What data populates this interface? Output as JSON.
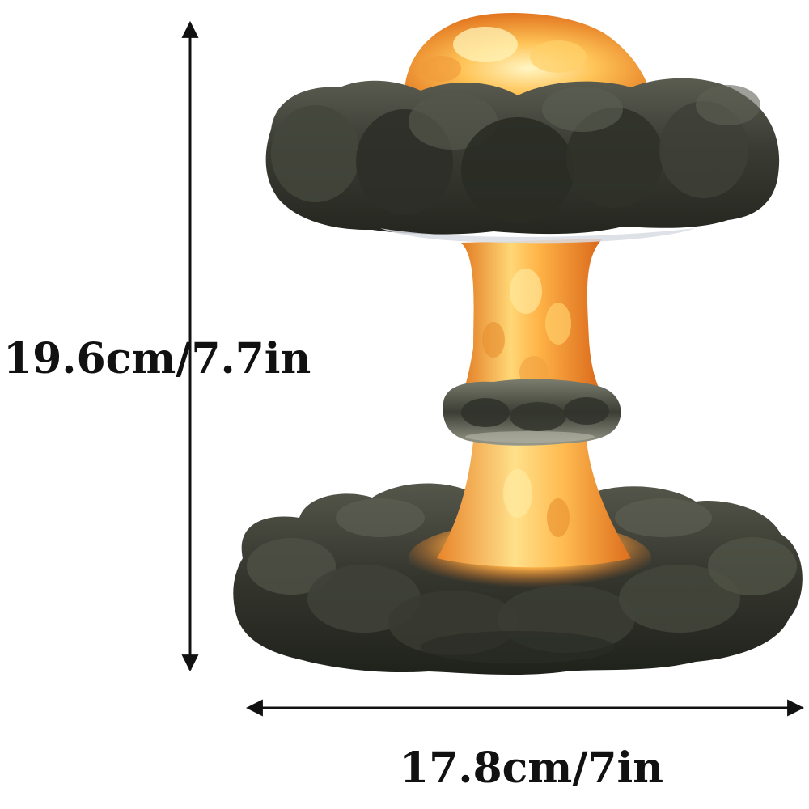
{
  "dimensions": {
    "height_label": "19.6cm/7.7in",
    "width_label": "17.8cm/7in"
  },
  "product": {
    "colors": {
      "smoke_dark": "#2b2d27",
      "smoke_mid": "#4a4c43",
      "smoke_light": "#6d6f63",
      "fire_core": "#fff1a8",
      "fire_mid": "#ffb347",
      "fire_deep": "#e0731e",
      "line": "#111111"
    }
  }
}
